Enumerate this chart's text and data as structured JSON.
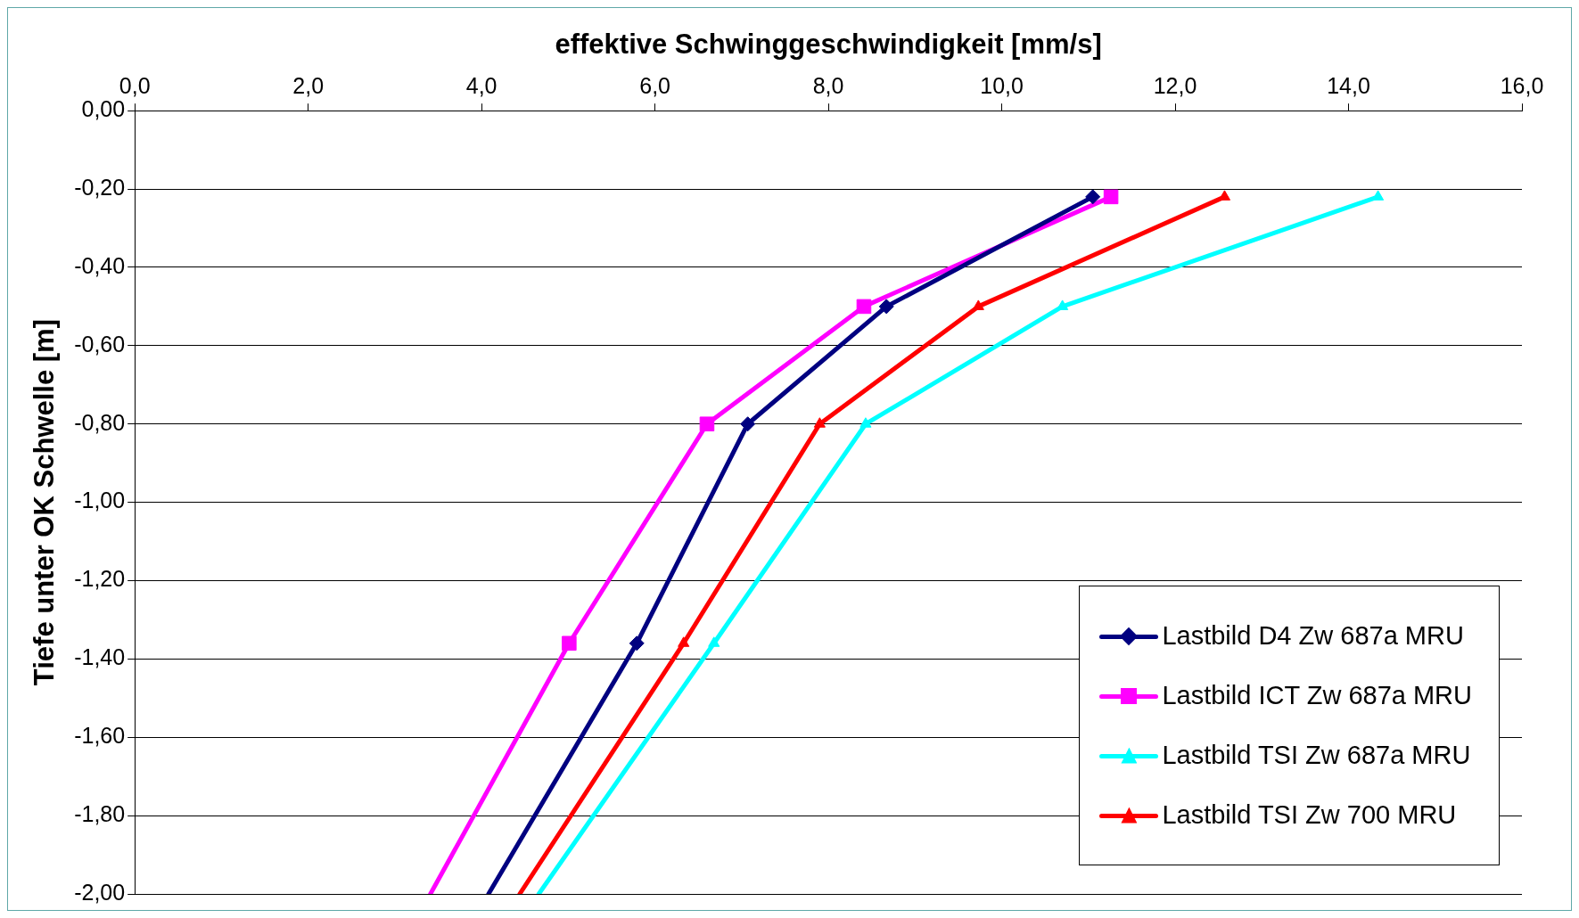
{
  "chart_data": {
    "type": "line",
    "xlabel": "effektive Schwinggeschwindigkeit [mm/s]",
    "ylabel": "Tiefe unter OK Schwelle [m]",
    "xlim": [
      0,
      16
    ],
    "xticks": [
      {
        "value": 0,
        "label": "0,0"
      },
      {
        "value": 2,
        "label": "2,0"
      },
      {
        "value": 4,
        "label": "4,0"
      },
      {
        "value": 6,
        "label": "6,0"
      },
      {
        "value": 8,
        "label": "8,0"
      },
      {
        "value": 10,
        "label": "10,0"
      },
      {
        "value": 12,
        "label": "12,0"
      },
      {
        "value": 14,
        "label": "14,0"
      },
      {
        "value": 16,
        "label": "16,0"
      }
    ],
    "ylim": [
      -2,
      0
    ],
    "yticks": [
      {
        "value": 0,
        "label": "0,00"
      },
      {
        "value": -0.2,
        "label": "-0,20"
      },
      {
        "value": -0.4,
        "label": "-0,40"
      },
      {
        "value": -0.6,
        "label": "-0,60"
      },
      {
        "value": -0.8,
        "label": "-0,80"
      },
      {
        "value": -1,
        "label": "-1,00"
      },
      {
        "value": -1.2,
        "label": "-1,20"
      },
      {
        "value": -1.4,
        "label": "-1,40"
      },
      {
        "value": -1.6,
        "label": "-1,60"
      },
      {
        "value": -1.8,
        "label": "-1,80"
      },
      {
        "value": -2,
        "label": "-2,00"
      }
    ],
    "grid": "y",
    "legend": "bottom right",
    "line_style": "solid",
    "series": [
      {
        "name": "Lastbild D4 Zw 687a MRU",
        "color": "#000080",
        "marker": "diamond",
        "x": [
          11.05,
          8.67,
          7.07,
          5.79,
          4.08
        ],
        "values": [
          -0.22,
          -0.5,
          -0.8,
          -1.36,
          -2
        ]
      },
      {
        "name": "Lastbild ICT Zw 687a MRU",
        "color": "#ff00ff",
        "marker": "square",
        "x": [
          11.26,
          8.41,
          6.6,
          5.01,
          3.41
        ],
        "values": [
          -0.22,
          -0.5,
          -0.8,
          -1.36,
          -2
        ]
      },
      {
        "name": "Lastbild TSI Zw 687a MRU",
        "color": "#00ffff",
        "marker": "triangle",
        "x": [
          14.34,
          10.7,
          8.43,
          6.68,
          4.66
        ],
        "values": [
          -0.22,
          -0.5,
          -0.8,
          -1.36,
          -2
        ]
      },
      {
        "name": "Lastbild TSI Zw 700 MRU",
        "color": "#ff0000",
        "marker": "triangle",
        "x": [
          12.57,
          9.73,
          7.9,
          6.33,
          4.44
        ],
        "values": [
          -0.22,
          -0.5,
          -0.8,
          -1.36,
          -2
        ]
      }
    ]
  }
}
